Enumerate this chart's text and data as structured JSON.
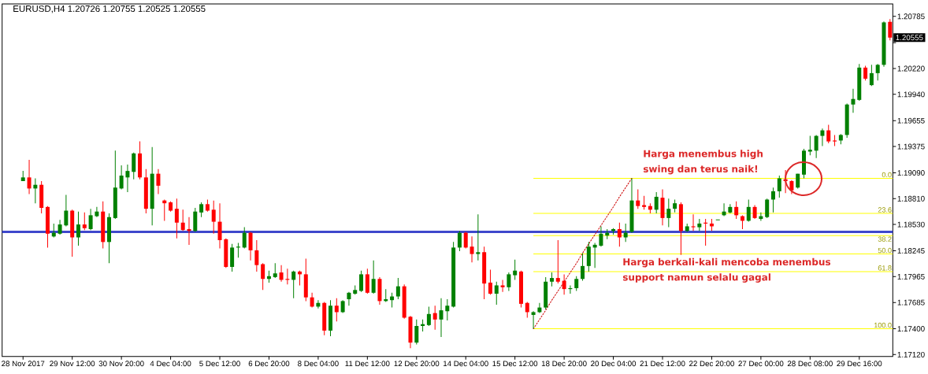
{
  "chart_data": {
    "type": "candlestick",
    "title": "EURUSD,H4 1.20726 1.20755 1.20525 1.20555",
    "categories": [
      "28 Nov 2017",
      null,
      null,
      null,
      null,
      null,
      null,
      null,
      "29 Nov 12:00",
      null,
      null,
      null,
      null,
      null,
      null,
      null,
      "30 Nov 20:00",
      null,
      null,
      null,
      null,
      null,
      null,
      null,
      "4 Dec 04:00",
      null,
      null,
      null,
      null,
      null,
      null,
      null,
      "5 Dec 12:00",
      null,
      null,
      null,
      null,
      null,
      null,
      null,
      "6 Dec 20:00",
      null,
      null,
      null,
      null,
      null,
      null,
      null,
      "8 Dec 04:00",
      null,
      null,
      null,
      null,
      null,
      null,
      null,
      "11 Dec 12:00",
      null,
      null,
      null,
      null,
      null,
      null,
      null,
      "12 Dec 20:00",
      null,
      null,
      null,
      null,
      null,
      null,
      null,
      "14 Dec 04:00",
      null,
      null,
      null,
      null,
      null,
      null,
      null,
      "15 Dec 12:00",
      null,
      null,
      null,
      null,
      null,
      null,
      null,
      "18 Dec 20:00",
      null,
      null,
      null,
      null,
      null,
      null,
      null,
      "20 Dec 04:00",
      null,
      null,
      null,
      null,
      null,
      null,
      null,
      "21 Dec 12:00",
      null,
      null,
      null,
      null,
      null,
      null,
      null,
      "22 Dec 20:00",
      null,
      null,
      null,
      null,
      null,
      null,
      null,
      "27 Dec 00:00",
      null,
      null,
      null,
      null,
      null,
      null,
      null,
      "28 Dec 08:00",
      null,
      null,
      null,
      null,
      null,
      null,
      null,
      "29 Dec 16:00",
      null,
      null,
      null,
      null,
      null
    ],
    "ohlc": [
      [
        1.19,
        1.1911,
        1.19,
        1.1904
      ],
      [
        1.1904,
        1.1923,
        1.1886,
        1.1892
      ],
      [
        1.1892,
        1.1903,
        1.1876,
        1.1896
      ],
      [
        1.1896,
        1.19,
        1.1865,
        1.1871
      ],
      [
        1.1872,
        1.1873,
        1.1828,
        1.1843
      ],
      [
        1.184,
        1.1854,
        1.1839,
        1.1844
      ],
      [
        1.1843,
        1.1858,
        1.1842,
        1.1853
      ],
      [
        1.1852,
        1.1885,
        1.1851,
        1.1868
      ],
      [
        1.1868,
        1.1869,
        1.1818,
        1.1839
      ],
      [
        1.1839,
        1.1867,
        1.183,
        1.1853
      ],
      [
        1.1853,
        1.1866,
        1.1847,
        1.1849
      ],
      [
        1.1848,
        1.187,
        1.1847,
        1.1863
      ],
      [
        1.1862,
        1.1872,
        1.1861,
        1.1867
      ],
      [
        1.1867,
        1.1878,
        1.1827,
        1.1834
      ],
      [
        1.1834,
        1.1865,
        1.1811,
        1.1861
      ],
      [
        1.186,
        1.1933,
        1.1859,
        1.1893
      ],
      [
        1.1892,
        1.1917,
        1.1891,
        1.1906
      ],
      [
        1.1904,
        1.1918,
        1.1888,
        1.1911
      ],
      [
        1.191,
        1.1931,
        1.1902,
        1.193
      ],
      [
        1.193,
        1.1943,
        1.1902,
        1.1904
      ],
      [
        1.1904,
        1.1913,
        1.1865,
        1.187
      ],
      [
        1.187,
        1.1937,
        1.1852,
        1.1908
      ],
      [
        1.1908,
        1.1913,
        1.1886,
        1.1895
      ],
      [
        1.1879,
        1.188,
        1.1857,
        1.1876
      ],
      [
        1.1877,
        1.1878,
        1.1867,
        1.1868
      ],
      [
        1.187,
        1.1881,
        1.1838,
        1.1855
      ],
      [
        1.1855,
        1.1869,
        1.1846,
        1.1847
      ],
      [
        1.1848,
        1.1861,
        1.1831,
        1.1846
      ],
      [
        1.1846,
        1.1871,
        1.1845,
        1.1867
      ],
      [
        1.1866,
        1.1877,
        1.1861,
        1.1875
      ],
      [
        1.1875,
        1.188,
        1.1867,
        1.1868
      ],
      [
        1.1869,
        1.1879,
        1.1843,
        1.1856
      ],
      [
        1.1856,
        1.1876,
        1.1827,
        1.1836
      ],
      [
        1.1837,
        1.1838,
        1.1806,
        1.1807
      ],
      [
        1.1807,
        1.1832,
        1.1802,
        1.1828
      ],
      [
        1.1828,
        1.1833,
        1.1817,
        1.1829
      ],
      [
        1.1828,
        1.185,
        1.1827,
        1.1844
      ],
      [
        1.1844,
        1.1845,
        1.1814,
        1.1825
      ],
      [
        1.1825,
        1.1836,
        1.1802,
        1.1809
      ],
      [
        1.181,
        1.1811,
        1.1782,
        1.1794
      ],
      [
        1.1794,
        1.1803,
        1.179,
        1.1797
      ],
      [
        1.1796,
        1.1811,
        1.1795,
        1.18
      ],
      [
        1.1801,
        1.1809,
        1.1791,
        1.1793
      ],
      [
        1.1794,
        1.1805,
        1.1788,
        1.1793
      ],
      [
        1.1793,
        1.1803,
        1.1773,
        1.1802
      ],
      [
        1.1802,
        1.1803,
        1.1787,
        1.1799
      ],
      [
        1.1799,
        1.1816,
        1.177,
        1.1774
      ],
      [
        1.1774,
        1.1779,
        1.1763,
        1.1764
      ],
      [
        1.1764,
        1.1771,
        1.1762,
        1.1768
      ],
      [
        1.1768,
        1.1769,
        1.1733,
        1.1738
      ],
      [
        1.1738,
        1.1771,
        1.1732,
        1.1765
      ],
      [
        1.1765,
        1.1773,
        1.1748,
        1.1758
      ],
      [
        1.1758,
        1.1771,
        1.1757,
        1.177
      ],
      [
        1.1772,
        1.178,
        1.1765,
        1.1779
      ],
      [
        1.1778,
        1.1787,
        1.1777,
        1.1782
      ],
      [
        1.1781,
        1.1803,
        1.178,
        1.1799
      ],
      [
        1.1799,
        1.1805,
        1.1778,
        1.1779
      ],
      [
        1.1779,
        1.1814,
        1.1778,
        1.1794
      ],
      [
        1.1794,
        1.1796,
        1.1766,
        1.177
      ],
      [
        1.177,
        1.1783,
        1.1769,
        1.1772
      ],
      [
        1.1771,
        1.1779,
        1.1763,
        1.1775
      ],
      [
        1.1775,
        1.1795,
        1.1772,
        1.1786
      ],
      [
        1.1786,
        1.1788,
        1.1751,
        1.1752
      ],
      [
        1.1753,
        1.1754,
        1.1719,
        1.1725
      ],
      [
        1.1725,
        1.175,
        1.1723,
        1.1743
      ],
      [
        1.1743,
        1.175,
        1.1737,
        1.1745
      ],
      [
        1.1744,
        1.1764,
        1.1743,
        1.1756
      ],
      [
        1.1757,
        1.1765,
        1.1739,
        1.175
      ],
      [
        1.175,
        1.1773,
        1.1731,
        1.176
      ],
      [
        1.1759,
        1.1772,
        1.1749,
        1.1765
      ],
      [
        1.1764,
        1.1834,
        1.1763,
        1.1828
      ],
      [
        1.1828,
        1.1846,
        1.1824,
        1.1844
      ],
      [
        1.1844,
        1.1845,
        1.1827,
        1.1828
      ],
      [
        1.1829,
        1.184,
        1.1812,
        1.1821
      ],
      [
        1.1821,
        1.1864,
        1.1814,
        1.1823
      ],
      [
        1.1823,
        1.1829,
        1.1772,
        1.1789
      ],
      [
        1.179,
        1.1804,
        1.1777,
        1.1778
      ],
      [
        1.1778,
        1.1791,
        1.1766,
        1.1787
      ],
      [
        1.1787,
        1.1793,
        1.178,
        1.1785
      ],
      [
        1.1785,
        1.1801,
        1.1781,
        1.1799
      ],
      [
        1.1798,
        1.1815,
        1.1793,
        1.1803
      ],
      [
        1.1802,
        1.1803,
        1.1763,
        1.1767
      ],
      [
        1.1768,
        1.1769,
        1.1752,
        1.1758
      ],
      [
        1.1755,
        1.1759,
        1.174,
        1.1758
      ],
      [
        1.1758,
        1.1768,
        1.1757,
        1.1763
      ],
      [
        1.1763,
        1.1796,
        1.1761,
        1.1791
      ],
      [
        1.1791,
        1.1801,
        1.1786,
        1.1795
      ],
      [
        1.1795,
        1.1836,
        1.1789,
        1.1791
      ],
      [
        1.1792,
        1.1799,
        1.1777,
        1.1783
      ],
      [
        1.1783,
        1.1787,
        1.1778,
        1.1784
      ],
      [
        1.1784,
        1.1797,
        1.1781,
        1.1794
      ],
      [
        1.1794,
        1.1822,
        1.1792,
        1.1808
      ],
      [
        1.1808,
        1.1834,
        1.1802,
        1.1829
      ],
      [
        1.1828,
        1.1833,
        1.1806,
        1.1831
      ],
      [
        1.183,
        1.1851,
        1.1829,
        1.1843
      ],
      [
        1.1841,
        1.1848,
        1.1837,
        1.1844
      ],
      [
        1.1846,
        1.1849,
        1.1842,
        1.1848
      ],
      [
        1.1848,
        1.1855,
        1.1829,
        1.1839
      ],
      [
        1.1839,
        1.1854,
        1.1834,
        1.1844
      ],
      [
        1.1845,
        1.1903,
        1.1844,
        1.1879
      ],
      [
        1.1879,
        1.1891,
        1.187,
        1.1873
      ],
      [
        1.1874,
        1.1884,
        1.1869,
        1.1872
      ],
      [
        1.1873,
        1.1876,
        1.1865,
        1.1869
      ],
      [
        1.1869,
        1.1888,
        1.1865,
        1.1883
      ],
      [
        1.1882,
        1.1891,
        1.1852,
        1.186
      ],
      [
        1.186,
        1.1881,
        1.185,
        1.187
      ],
      [
        1.187,
        1.188,
        1.1866,
        1.1876
      ],
      [
        1.1875,
        1.1877,
        1.182,
        1.1846
      ],
      [
        1.1846,
        1.1854,
        1.1845,
        1.1851
      ],
      [
        1.1851,
        1.1864,
        1.1846,
        1.185
      ],
      [
        1.185,
        1.1859,
        1.1846,
        1.1854
      ],
      [
        1.1855,
        1.1859,
        1.183,
        1.1854
      ],
      [
        1.1854,
        1.1859,
        1.1846,
        1.1851
      ],
      [
        1.1858,
        1.1858,
        1.1858,
        1.1858
      ],
      [
        1.1863,
        1.1876,
        1.1862,
        1.1867
      ],
      [
        1.1866,
        1.1875,
        1.1865,
        1.1872
      ],
      [
        1.1872,
        1.1878,
        1.1859,
        1.1863
      ],
      [
        1.1862,
        1.1863,
        1.1848,
        1.1857
      ],
      [
        1.1857,
        1.188,
        1.1856,
        1.1872
      ],
      [
        1.1872,
        1.1874,
        1.1859,
        1.186
      ],
      [
        1.1859,
        1.1866,
        1.1857,
        1.1862
      ],
      [
        1.1861,
        1.1881,
        1.186,
        1.188
      ],
      [
        1.188,
        1.1893,
        1.1866,
        1.1889
      ],
      [
        1.1889,
        1.1906,
        1.1882,
        1.1903
      ],
      [
        1.1902,
        1.1912,
        1.1887,
        1.19
      ],
      [
        1.19,
        1.1901,
        1.1886,
        1.189
      ],
      [
        1.1893,
        1.1908,
        1.1892,
        1.1908
      ],
      [
        1.1907,
        1.1935,
        1.1903,
        1.1933
      ],
      [
        1.1932,
        1.1949,
        1.1928,
        1.1934
      ],
      [
        1.1933,
        1.195,
        1.1925,
        1.1949
      ],
      [
        1.1949,
        1.1957,
        1.1938,
        1.1955
      ],
      [
        1.1955,
        1.1961,
        1.1941,
        1.1943
      ],
      [
        1.1944,
        1.195,
        1.1938,
        1.1943
      ],
      [
        1.1944,
        1.1951,
        1.194,
        1.195
      ],
      [
        1.195,
        1.1984,
        1.1947,
        1.1983
      ],
      [
        1.1983,
        1.2,
        1.1974,
        1.1989
      ],
      [
        1.1988,
        1.2027,
        1.1987,
        1.2023
      ],
      [
        1.2023,
        1.2025,
        1.2009,
        1.2011
      ],
      [
        1.2004,
        1.2026,
        1.2003,
        1.2017
      ],
      [
        1.2017,
        1.2027,
        1.2009,
        1.2026
      ],
      [
        1.2026,
        1.2073,
        1.2024,
        1.2072
      ],
      [
        1.20726,
        1.20755,
        1.20525,
        1.20555
      ]
    ],
    "colors": [
      "#008000",
      "#ff0000",
      "#008000",
      "#ff0000",
      "#ff0000",
      "#008000",
      "#008000",
      "#008000",
      "#ff0000",
      "#008000",
      "#ff0000",
      "#008000",
      "#008000",
      "#ff0000",
      "#008000",
      "#008000",
      "#008000",
      "#008000",
      "#008000",
      "#ff0000",
      "#ff0000",
      "#008000",
      "#ff0000",
      "#ff0000",
      "#ff0000",
      "#ff0000",
      "#ff0000",
      "#ff0000",
      "#008000",
      "#008000",
      "#ff0000",
      "#ff0000",
      "#ff0000",
      "#ff0000",
      "#008000",
      "#008000",
      "#008000",
      "#ff0000",
      "#ff0000",
      "#ff0000",
      "#008000",
      "#008000",
      "#ff0000",
      "#ff0000",
      "#008000",
      "#ff0000",
      "#ff0000",
      "#ff0000",
      "#008000",
      "#ff0000",
      "#008000",
      "#ff0000",
      "#008000",
      "#008000",
      "#008000",
      "#008000",
      "#ff0000",
      "#008000",
      "#ff0000",
      "#008000",
      "#008000",
      "#008000",
      "#ff0000",
      "#ff0000",
      "#008000",
      "#008000",
      "#008000",
      "#ff0000",
      "#008000",
      "#008000",
      "#008000",
      "#008000",
      "#ff0000",
      "#ff0000",
      "#008000",
      "#ff0000",
      "#ff0000",
      "#008000",
      "#ff0000",
      "#008000",
      "#008000",
      "#ff0000",
      "#ff0000",
      "#008000",
      "#008000",
      "#008000",
      "#008000",
      "#ff0000",
      "#ff0000",
      "#008000",
      "#008000",
      "#008000",
      "#008000",
      "#008000",
      "#008000",
      "#008000",
      "#008000",
      "#ff0000",
      "#008000",
      "#008000",
      "#ff0000",
      "#ff0000",
      "#ff0000",
      "#008000",
      "#ff0000",
      "#008000",
      "#008000",
      "#ff0000",
      "#008000",
      "#ff0000",
      "#008000",
      "#ff0000",
      "#ff0000",
      "#008000",
      "#008000",
      "#008000",
      "#ff0000",
      "#ff0000",
      "#008000",
      "#ff0000",
      "#008000",
      "#008000",
      "#008000",
      "#008000",
      "#ff0000",
      "#ff0000",
      "#008000",
      "#008000",
      "#008000",
      "#008000",
      "#008000",
      "#ff0000",
      "#ff0000",
      "#008000",
      "#008000",
      "#008000",
      "#008000",
      "#ff0000",
      "#008000",
      "#008000",
      "#008000",
      "#ff0000"
    ],
    "series": [
      {
        "type": "line",
        "color": "#cc0000",
        "line_style": "dotted",
        "values": [
          null,
          null,
          null,
          null,
          null,
          null,
          null,
          null,
          null,
          null,
          null,
          null,
          null,
          null,
          null,
          null,
          null,
          null,
          null,
          null,
          null,
          null,
          null,
          null,
          null,
          null,
          null,
          null,
          null,
          null,
          null,
          null,
          null,
          null,
          null,
          null,
          null,
          null,
          null,
          null,
          null,
          null,
          null,
          null,
          null,
          null,
          null,
          null,
          null,
          null,
          null,
          null,
          null,
          null,
          null,
          null,
          null,
          null,
          null,
          null,
          null,
          null,
          null,
          null,
          null,
          null,
          null,
          null,
          null,
          null,
          null,
          null,
          null,
          null,
          null,
          null,
          null,
          null,
          null,
          null,
          null,
          null,
          null,
          1.174,
          1.175,
          1.176,
          1.1771,
          1.1781,
          1.1791,
          1.1801,
          1.1811,
          1.1822,
          1.1832,
          1.1842,
          1.1852,
          1.1862,
          1.1872,
          1.1883,
          1.1893,
          1.1903,
          null,
          null,
          null,
          null,
          null,
          null,
          null,
          null,
          null,
          null,
          null,
          null,
          null,
          null,
          null,
          null,
          null,
          null,
          null,
          null,
          null,
          null,
          null,
          null,
          null,
          null,
          null,
          null,
          null,
          null,
          null,
          null,
          null,
          null,
          null,
          null,
          null,
          null,
          null,
          null,
          null,
          null
        ]
      }
    ],
    "ylim": [
      1.171,
      1.2092
    ],
    "yticks": [
      1.20785,
      {
        "value": 1.205,
        "label": null
      },
      {
        "value": 1.2022,
        "label": "1.20220"
      },
      {
        "value": 1.1994,
        "label": "1.19940"
      },
      1.19655,
      1.19375,
      {
        "value": 1.1909,
        "label": "1.19090"
      },
      {
        "value": 1.1881,
        "label": "1.18810"
      },
      {
        "value": 1.1853,
        "label": "1.18530"
      },
      1.18245,
      1.17965,
      1.17685,
      {
        "value": 1.174,
        "label": "1.17400"
      },
      {
        "value": 1.1712,
        "label": "1.17120"
      }
    ],
    "ref_lines": [
      {
        "axis": "y",
        "value": 1.1903,
        "color": "#ffff00"
      },
      {
        "axis": "y",
        "value": 1.1865,
        "color": "#ffff00"
      },
      {
        "axis": "y",
        "value": 1.1841,
        "color": "#ffff00"
      },
      {
        "axis": "y",
        "value": 1.1821,
        "color": "#ffff00"
      },
      {
        "axis": "y",
        "value": 1.1802,
        "color": "#ffff00"
      },
      {
        "axis": "y",
        "value": 1.174,
        "color": "#ffff00"
      },
      {
        "axis": "y",
        "value": 1.1845,
        "color": "#3f48cc"
      }
    ],
    "annotations": [
      "Harga menembus high swing dan terus naik!",
      "Harga berkali-kali mencoba menembus support namun selalu gagal",
      "1.20555",
      {
        "text": "0.0",
        "y": 1.1903
      },
      {
        "text": "23.6",
        "y": 1.1865
      },
      {
        "text": "38.2",
        "y": 1.1841
      },
      {
        "text": "50.0",
        "y": 1.1821
      },
      {
        "text": "61.8",
        "y": 1.1802
      },
      {
        "text": "100.0",
        "y": 1.174
      }
    ]
  }
}
